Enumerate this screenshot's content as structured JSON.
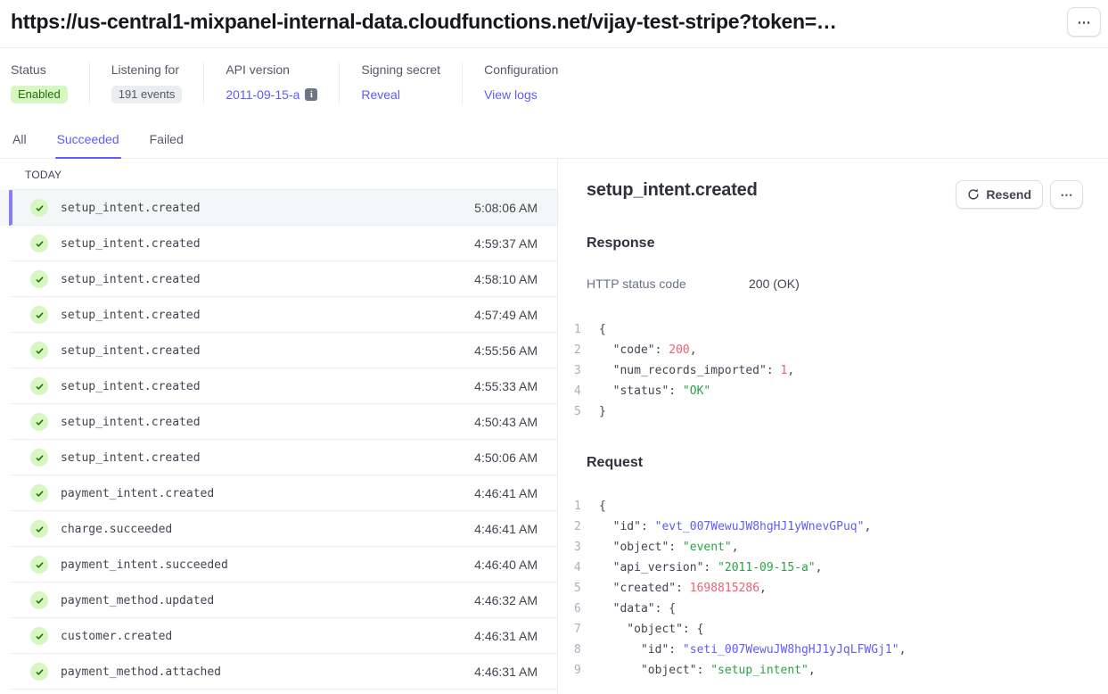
{
  "colors": {
    "accent_purple": "#625afa",
    "success_bg": "#d7f7c2",
    "success_text": "#217005",
    "check_green": "#217005",
    "selected_bar": "#8780f3",
    "code_number": "#ed5f74",
    "code_string": "#2aa245",
    "code_id": "#625afa"
  },
  "header": {
    "url": "https://us-central1-mixpanel-internal-data.cloudfunctions.net/vijay-test-stripe?token=…",
    "more_label": "⋯"
  },
  "status_bar": {
    "sections": [
      {
        "name": "status",
        "label": "Status",
        "value": "Enabled",
        "type": "badge-green"
      },
      {
        "name": "listening-for",
        "label": "Listening for",
        "value": "191 events",
        "type": "badge-gray"
      },
      {
        "name": "api-version",
        "label": "API version",
        "value": "2011-09-15-a",
        "type": "link-info",
        "value_name": "api-version-link"
      },
      {
        "name": "signing-secret",
        "label": "Signing secret",
        "value": "Reveal",
        "type": "link",
        "value_name": "reveal-link"
      },
      {
        "name": "configuration",
        "label": "Configuration",
        "value": "View logs",
        "type": "link",
        "value_name": "view-logs-link"
      }
    ]
  },
  "tabs": [
    {
      "name": "all",
      "label": "All",
      "active": false
    },
    {
      "name": "succeeded",
      "label": "Succeeded",
      "active": true
    },
    {
      "name": "failed",
      "label": "Failed",
      "active": false
    }
  ],
  "event_list": {
    "group_label": "TODAY",
    "events": [
      {
        "name": "setup_intent.created",
        "time": "5:08:06 AM",
        "selected": true
      },
      {
        "name": "setup_intent.created",
        "time": "4:59:37 AM",
        "selected": false
      },
      {
        "name": "setup_intent.created",
        "time": "4:58:10 AM",
        "selected": false
      },
      {
        "name": "setup_intent.created",
        "time": "4:57:49 AM",
        "selected": false
      },
      {
        "name": "setup_intent.created",
        "time": "4:55:56 AM",
        "selected": false
      },
      {
        "name": "setup_intent.created",
        "time": "4:55:33 AM",
        "selected": false
      },
      {
        "name": "setup_intent.created",
        "time": "4:50:43 AM",
        "selected": false
      },
      {
        "name": "setup_intent.created",
        "time": "4:50:06 AM",
        "selected": false
      },
      {
        "name": "payment_intent.created",
        "time": "4:46:41 AM",
        "selected": false
      },
      {
        "name": "charge.succeeded",
        "time": "4:46:41 AM",
        "selected": false
      },
      {
        "name": "payment_intent.succeeded",
        "time": "4:46:40 AM",
        "selected": false
      },
      {
        "name": "payment_method.updated",
        "time": "4:46:32 AM",
        "selected": false
      },
      {
        "name": "customer.created",
        "time": "4:46:31 AM",
        "selected": false
      },
      {
        "name": "payment_method.attached",
        "time": "4:46:31 AM",
        "selected": false
      }
    ]
  },
  "detail": {
    "title": "setup_intent.created",
    "resend_label": "Resend",
    "more_label": "⋯",
    "response": {
      "heading": "Response",
      "status_label": "HTTP status code",
      "status_value": "200 (OK)",
      "code_lines": [
        [
          {
            "t": "{",
            "c": "p"
          }
        ],
        [
          {
            "t": "  \"code\": ",
            "c": "p"
          },
          {
            "t": "200",
            "c": "n"
          },
          {
            "t": ",",
            "c": "p"
          }
        ],
        [
          {
            "t": "  \"num_records_imported\": ",
            "c": "p"
          },
          {
            "t": "1",
            "c": "n"
          },
          {
            "t": ",",
            "c": "p"
          }
        ],
        [
          {
            "t": "  \"status\": ",
            "c": "p"
          },
          {
            "t": "\"OK\"",
            "c": "s"
          }
        ],
        [
          {
            "t": "}",
            "c": "p"
          }
        ]
      ]
    },
    "request": {
      "heading": "Request",
      "code_lines": [
        [
          {
            "t": "{",
            "c": "p"
          }
        ],
        [
          {
            "t": "  \"id\": ",
            "c": "p"
          },
          {
            "t": "\"evt_007WewuJW8hgHJ1yWnevGPuq\"",
            "c": "i"
          },
          {
            "t": ",",
            "c": "p"
          }
        ],
        [
          {
            "t": "  \"object\": ",
            "c": "p"
          },
          {
            "t": "\"event\"",
            "c": "s"
          },
          {
            "t": ",",
            "c": "p"
          }
        ],
        [
          {
            "t": "  \"api_version\": ",
            "c": "p"
          },
          {
            "t": "\"2011-09-15-a\"",
            "c": "s"
          },
          {
            "t": ",",
            "c": "p"
          }
        ],
        [
          {
            "t": "  \"created\": ",
            "c": "p"
          },
          {
            "t": "1698815286",
            "c": "n"
          },
          {
            "t": ",",
            "c": "p"
          }
        ],
        [
          {
            "t": "  \"data\": {",
            "c": "p"
          }
        ],
        [
          {
            "t": "    \"object\": {",
            "c": "p"
          }
        ],
        [
          {
            "t": "      \"id\": ",
            "c": "p"
          },
          {
            "t": "\"seti_007WewuJW8hgHJ1yJqLFWGj1\"",
            "c": "i"
          },
          {
            "t": ",",
            "c": "p"
          }
        ],
        [
          {
            "t": "      \"object\": ",
            "c": "p"
          },
          {
            "t": "\"setup_intent\"",
            "c": "s"
          },
          {
            "t": ",",
            "c": "p"
          }
        ]
      ]
    }
  }
}
